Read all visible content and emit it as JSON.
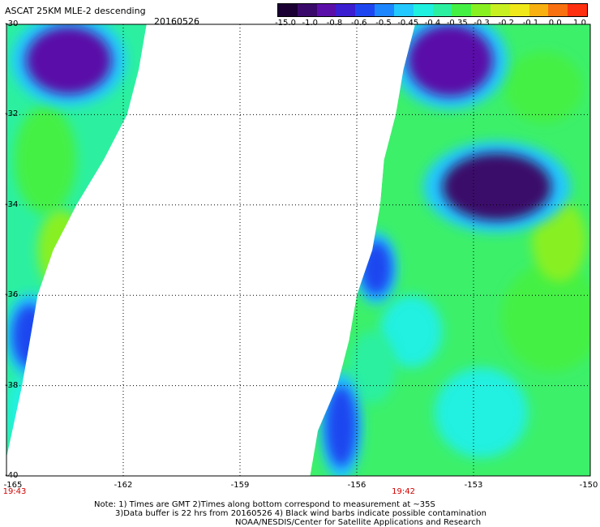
{
  "header": {
    "title": "ASCAT 25KM MLE-2 descending",
    "date": "20160526"
  },
  "colorbar": {
    "tick_labels": [
      "-15.0",
      "-1.0",
      "-0.8",
      "-0.6",
      "-0.5",
      "-0.45",
      "-0.4",
      "-0.35",
      "-0.3",
      "-0.2",
      "-0.1",
      "0.0",
      "1.0"
    ],
    "colors": [
      "#1a0033",
      "#3a0a6a",
      "#5a10a8",
      "#3a1ed0",
      "#1e46f0",
      "#1c86ff",
      "#22c8ff",
      "#20f0e0",
      "#2cf0a0",
      "#44f044",
      "#88f020",
      "#c8f020",
      "#f0e818",
      "#f8b010",
      "#f87010",
      "#ff3010"
    ]
  },
  "map": {
    "latitudes": [
      -30,
      -32,
      -34,
      -36,
      -38,
      -40
    ],
    "longitudes": [
      -165,
      -162,
      -159,
      -156,
      -153,
      -150
    ],
    "lat_labels": [
      "-30",
      "-32",
      "-34",
      "-36",
      "-38",
      "-40"
    ],
    "lon_labels": [
      "-165",
      "-162",
      "-159",
      "-156",
      "-153",
      "-150"
    ],
    "pass_times": [
      {
        "label": "19:43",
        "lon": -165
      },
      {
        "label": "19:42",
        "lon": -154.8
      }
    ],
    "swaths": [
      {
        "name": "west-swath",
        "fill": "#2cf0a0",
        "outline": [
          [
            -165,
            -30
          ],
          [
            -161.4,
            -30
          ],
          [
            -161.6,
            -31
          ],
          [
            -161.9,
            -32
          ],
          [
            -162.5,
            -33
          ],
          [
            -163.2,
            -34
          ],
          [
            -163.8,
            -35
          ],
          [
            -164.2,
            -36
          ],
          [
            -164.6,
            -38
          ],
          [
            -165,
            -39.6
          ]
        ]
      },
      {
        "name": "east-swath",
        "fill": "#3cf06a",
        "outline": [
          [
            -154.5,
            -30
          ],
          [
            -150,
            -30
          ],
          [
            -150,
            -40
          ],
          [
            -157.2,
            -40
          ],
          [
            -157,
            -39
          ],
          [
            -156.5,
            -38
          ],
          [
            -156.2,
            -37
          ],
          [
            -156,
            -36
          ],
          [
            -155.6,
            -35
          ],
          [
            -155.4,
            -34
          ],
          [
            -155.3,
            -33
          ],
          [
            -155,
            -32
          ],
          [
            -154.8,
            -31
          ]
        ]
      }
    ],
    "features": [
      {
        "name": "low-mle-west-north",
        "lon": -163.4,
        "lat": -30.8,
        "rx": 1.1,
        "ry": 0.75,
        "value": -0.8
      },
      {
        "name": "low-mle-west-south",
        "lon": -164.4,
        "lat": -36.9,
        "rx": 0.45,
        "ry": 0.7,
        "value": -0.6
      },
      {
        "name": "low-mle-east-north",
        "lon": -153.6,
        "lat": -30.8,
        "rx": 1.1,
        "ry": 0.8,
        "value": -0.8
      },
      {
        "name": "low-mle-east-center",
        "lon": -152.4,
        "lat": -33.6,
        "rx": 1.4,
        "ry": 0.75,
        "value": -1.0
      },
      {
        "name": "low-mle-east-edge",
        "lon": -155.5,
        "lat": -35.4,
        "rx": 0.4,
        "ry": 0.6,
        "value": -0.6
      },
      {
        "name": "low-mle-east-south",
        "lon": -156.4,
        "lat": -38.9,
        "rx": 0.4,
        "ry": 0.9,
        "value": -0.6
      }
    ]
  },
  "notes": {
    "line1": "Note: 1) Times are GMT 2)Times along bottom correspond to measurement at ~35S",
    "line2": "3)Data buffer is 22 hrs from 20160526 4) Black wind barbs indicate possible contamination",
    "line3": "NOAA/NESDIS/Center for Satellite Applications and Research"
  }
}
